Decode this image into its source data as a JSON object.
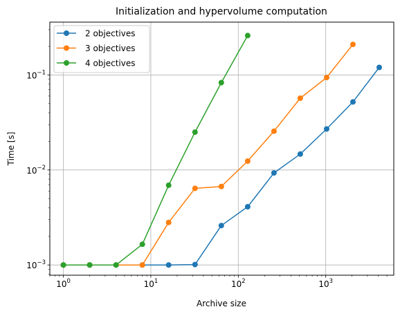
{
  "chart_data": {
    "type": "line",
    "title": "Initialization and hypervolume computation",
    "xlabel": "Archive size",
    "ylabel": "Time [s]",
    "xscale": "log",
    "yscale": "log",
    "xlim": [
      0.7,
      6000
    ],
    "ylim": [
      0.00078,
      0.36
    ],
    "grid": true,
    "legend_position": "top-left",
    "x_ticks": [
      {
        "base": "10",
        "exp": "0",
        "value": 1
      },
      {
        "base": "10",
        "exp": "1",
        "value": 10
      },
      {
        "base": "10",
        "exp": "2",
        "value": 100
      },
      {
        "base": "10",
        "exp": "3",
        "value": 1000
      }
    ],
    "y_ticks": [
      {
        "base": "10",
        "exp": "−3",
        "value": 0.001
      },
      {
        "base": "10",
        "exp": "−2",
        "value": 0.01
      },
      {
        "base": "10",
        "exp": "−1",
        "value": 0.1
      }
    ],
    "series": [
      {
        "name": "2 objectives",
        "color": "#1f77b4",
        "x": [
          1,
          2,
          4,
          8,
          16,
          32,
          64,
          128,
          256,
          512,
          1024,
          2048,
          4096
        ],
        "y": [
          0.001,
          0.001,
          0.001,
          0.001,
          0.001,
          0.00101,
          0.0026,
          0.0041,
          0.0093,
          0.0147,
          0.027,
          0.052,
          0.12
        ]
      },
      {
        "name": "3 objectives",
        "color": "#ff7f0e",
        "x": [
          1,
          2,
          4,
          8,
          16,
          32,
          64,
          128,
          256,
          512,
          1024,
          2048
        ],
        "y": [
          0.001,
          0.001,
          0.001,
          0.001,
          0.0028,
          0.0064,
          0.0067,
          0.0124,
          0.0256,
          0.057,
          0.094,
          0.21
        ]
      },
      {
        "name": "4 objectives",
        "color": "#2ca02c",
        "x": [
          1,
          2,
          4,
          8,
          16,
          32,
          64,
          128
        ],
        "y": [
          0.001,
          0.001,
          0.001,
          0.00165,
          0.0069,
          0.025,
          0.083,
          0.26
        ]
      }
    ]
  }
}
